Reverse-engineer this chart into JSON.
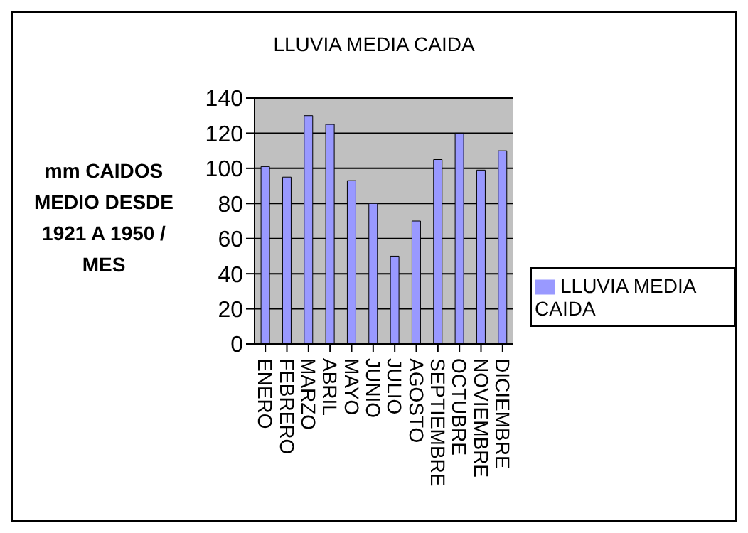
{
  "chart_data": {
    "type": "bar",
    "title": "LLUVIA MEDIA CAIDA",
    "ylabel": "mm CAIDOS MEDIO DESDE 1921 A 1950 / MES",
    "categories": [
      "ENERO",
      "FEBRERO",
      "MARZO",
      "ABRIL",
      "MAYO",
      "JUNIO",
      "JULIO",
      "AGOSTO",
      "SEPTIEMBRE",
      "OCTUBRE",
      "NOVIEMBRE",
      "DICIEMBRE"
    ],
    "series": [
      {
        "name": "LLUVIA MEDIA CAIDA",
        "color": "#9999ff",
        "values": [
          101,
          95,
          130,
          125,
          93,
          80,
          50,
          70,
          105,
          120,
          99,
          110
        ]
      }
    ],
    "ylim": [
      0,
      140
    ],
    "yticks": [
      0,
      20,
      40,
      60,
      80,
      100,
      120,
      140
    ],
    "grid": "y",
    "legend": "right"
  }
}
